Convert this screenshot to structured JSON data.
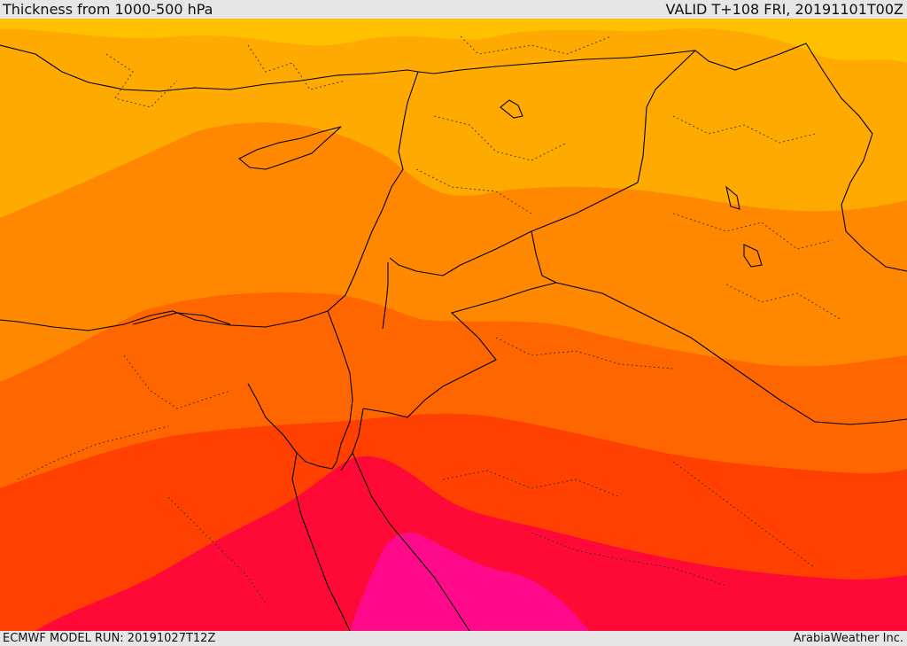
{
  "header": {
    "title": "Thickness from 1000-500 hPa",
    "valid": "VALID T+108 FRI, 20191101T00Z"
  },
  "footer": {
    "model_run": "ECMWF MODEL RUN: 20191027T12Z",
    "credit": "ArabiaWeather Inc."
  },
  "map": {
    "field": "thickness",
    "colors": {
      "yellow": "#ffc000",
      "light_orange": "#ffaa00",
      "orange": "#ff8800",
      "dark_orange": "#ff6600",
      "red_orange": "#ff4000",
      "crimson": "#ff0a36",
      "magenta": "#ff0a8a",
      "boundaries": "#000000"
    }
  }
}
